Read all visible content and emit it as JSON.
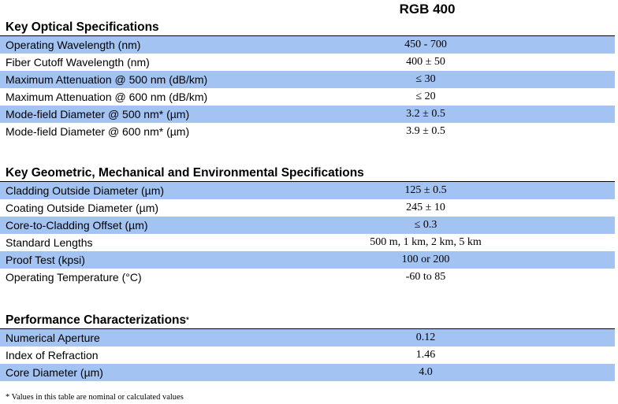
{
  "column_header": "RGB 400",
  "sections": [
    {
      "title": "Key Optical Specifications",
      "title_mark": "",
      "rows": [
        {
          "label": "Operating Wavelength (nm)",
          "value": "450 - 700"
        },
        {
          "label": "Fiber Cutoff Wavelength (nm)",
          "value": "400 ± 50"
        },
        {
          "label": "Maximum Attenuation @ 500 nm  (dB/km)",
          "value": "≤ 30"
        },
        {
          "label": "Maximum Attenuation @ 600 nm  (dB/km)",
          "value": "≤ 20"
        },
        {
          "label": "Mode-field Diameter @ 500 nm* (µm)",
          "value": "3.2 ± 0.5"
        },
        {
          "label": "Mode-field Diameter @ 600 nm* (µm)",
          "value": "3.9 ± 0.5"
        }
      ]
    },
    {
      "title": "Key Geometric, Mechanical and Environmental Specifications",
      "title_mark": "",
      "rows": [
        {
          "label": "Cladding Outside Diameter  (µm)",
          "value": "125 ± 0.5"
        },
        {
          "label": "Coating Outside Diameter (µm)",
          "value": "245 ± 10"
        },
        {
          "label": "Core-to-Cladding Offset (µm)",
          "value": "≤ 0.3"
        },
        {
          "label": "Standard Lengths",
          "value": "500 m, 1 km, 2 km, 5 km"
        },
        {
          "label": "Proof Test (kpsi)",
          "value": "100 or 200"
        },
        {
          "label": "Operating Temperature  (°C)",
          "value": "-60 to 85"
        }
      ]
    },
    {
      "title": "Performance Characterizations",
      "title_mark": "*",
      "rows": [
        {
          "label": "Numerical Aperture",
          "value": "0.12"
        },
        {
          "label": "Index of Refraction",
          "value": "1.46"
        },
        {
          "label": "Core Diameter (µm)",
          "value": "4.0"
        }
      ]
    }
  ],
  "footnote": "* Values in this table are nominal or calculated values",
  "colors": {
    "row_shade": "#a3c4f3",
    "text": "#000000"
  }
}
